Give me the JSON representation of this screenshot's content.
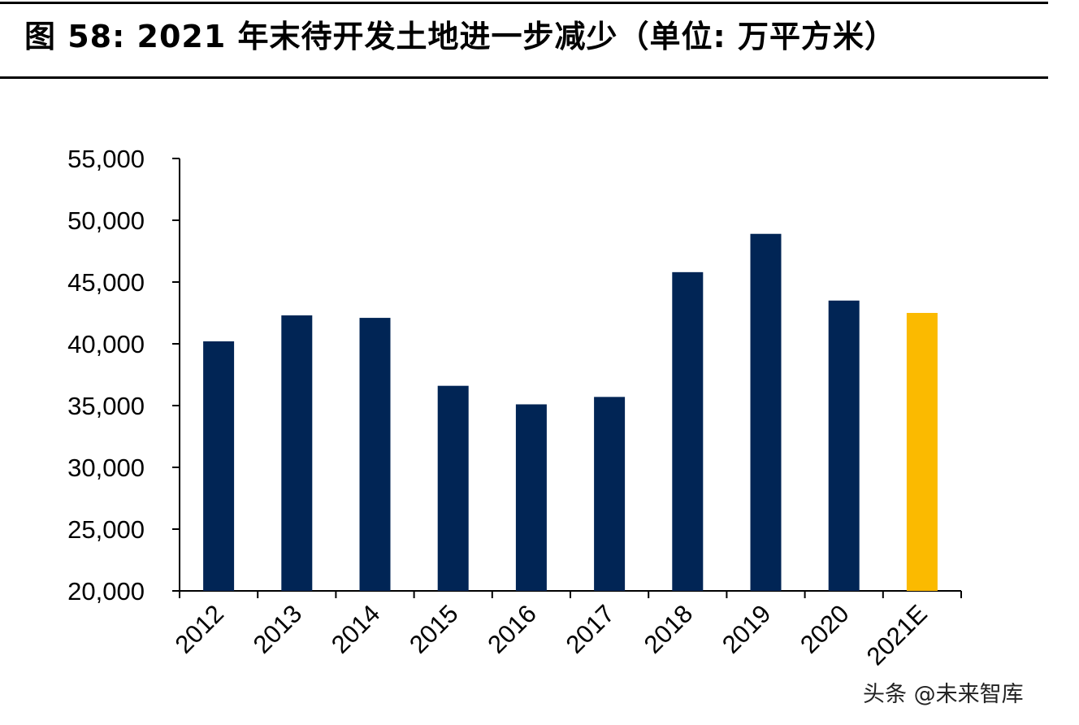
{
  "title": "图 58: 2021 年末待开发土地进一步减少（单位: 万平方米）",
  "watermark": "头条 @未来智库",
  "chart_data": {
    "type": "bar",
    "categories": [
      "2012",
      "2013",
      "2014",
      "2015",
      "2016",
      "2017",
      "2018",
      "2019",
      "2020",
      "2021E"
    ],
    "values": [
      40200,
      42300,
      42100,
      36600,
      35100,
      35700,
      45800,
      48900,
      43500,
      42500
    ],
    "ylim": [
      20000,
      55000
    ],
    "yticks": [
      20000,
      25000,
      30000,
      35000,
      40000,
      45000,
      50000,
      55000
    ],
    "ytick_labels": [
      "20,000",
      "25,000",
      "30,000",
      "35,000",
      "40,000",
      "45,000",
      "50,000",
      "55,000"
    ],
    "xlabel": "",
    "ylabel": "",
    "grid": false,
    "legend": "none",
    "colors": {
      "actual": "#012555",
      "estimate": "#FBBA00"
    },
    "estimate_categories": [
      "2021E"
    ]
  }
}
